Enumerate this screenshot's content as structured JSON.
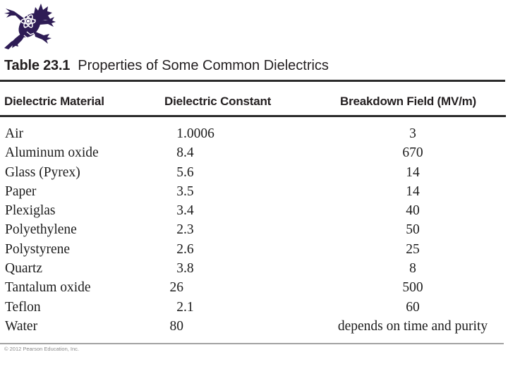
{
  "slide": {
    "background": "#ffffff",
    "logo": {
      "icon": "horned-lizard-with-atom",
      "color": "#2e1c55",
      "atom_color": "#ffffff"
    },
    "title": {
      "label": "Table 23.1",
      "text": "Properties of Some Common Dielectrics"
    },
    "table": {
      "columns": [
        "Dielectric Material",
        "Dielectric Constant",
        "Breakdown Field (MV/m)"
      ],
      "rows": [
        {
          "material": "Air",
          "constant": "1.0006",
          "breakdown": "3"
        },
        {
          "material": "Aluminum oxide",
          "constant": "8.4",
          "breakdown": "670"
        },
        {
          "material": "Glass (Pyrex)",
          "constant": "5.6",
          "breakdown": "14"
        },
        {
          "material": "Paper",
          "constant": "3.5",
          "breakdown": "14"
        },
        {
          "material": "Plexiglas",
          "constant": "3.4",
          "breakdown": "40"
        },
        {
          "material": "Polyethylene",
          "constant": "2.3",
          "breakdown": "50"
        },
        {
          "material": "Polystyrene",
          "constant": "2.6",
          "breakdown": "25"
        },
        {
          "material": "Quartz",
          "constant": "3.8",
          "breakdown": "8"
        },
        {
          "material": "Tantalum oxide",
          "constant": "26",
          "breakdown": "500"
        },
        {
          "material": "Teflon",
          "constant": "2.1",
          "breakdown": "60"
        },
        {
          "material": "Water",
          "constant": "80",
          "breakdown": "depends on time and purity"
        }
      ]
    },
    "footer": {
      "copyright": "© 2012 Pearson Education, Inc."
    }
  },
  "chart_data": {
    "type": "table",
    "title": "Table 23.1 Properties of Some Common Dielectrics",
    "columns": [
      "Dielectric Material",
      "Dielectric Constant",
      "Breakdown Field (MV/m)"
    ],
    "rows": [
      [
        "Air",
        "1.0006",
        "3"
      ],
      [
        "Aluminum oxide",
        "8.4",
        "670"
      ],
      [
        "Glass (Pyrex)",
        "5.6",
        "14"
      ],
      [
        "Paper",
        "3.5",
        "14"
      ],
      [
        "Plexiglas",
        "3.4",
        "40"
      ],
      [
        "Polyethylene",
        "2.3",
        "50"
      ],
      [
        "Polystyrene",
        "2.6",
        "25"
      ],
      [
        "Quartz",
        "3.8",
        "8"
      ],
      [
        "Tantalum oxide",
        "26",
        "500"
      ],
      [
        "Teflon",
        "2.1",
        "60"
      ],
      [
        "Water",
        "80",
        "depends on time and purity"
      ]
    ]
  }
}
